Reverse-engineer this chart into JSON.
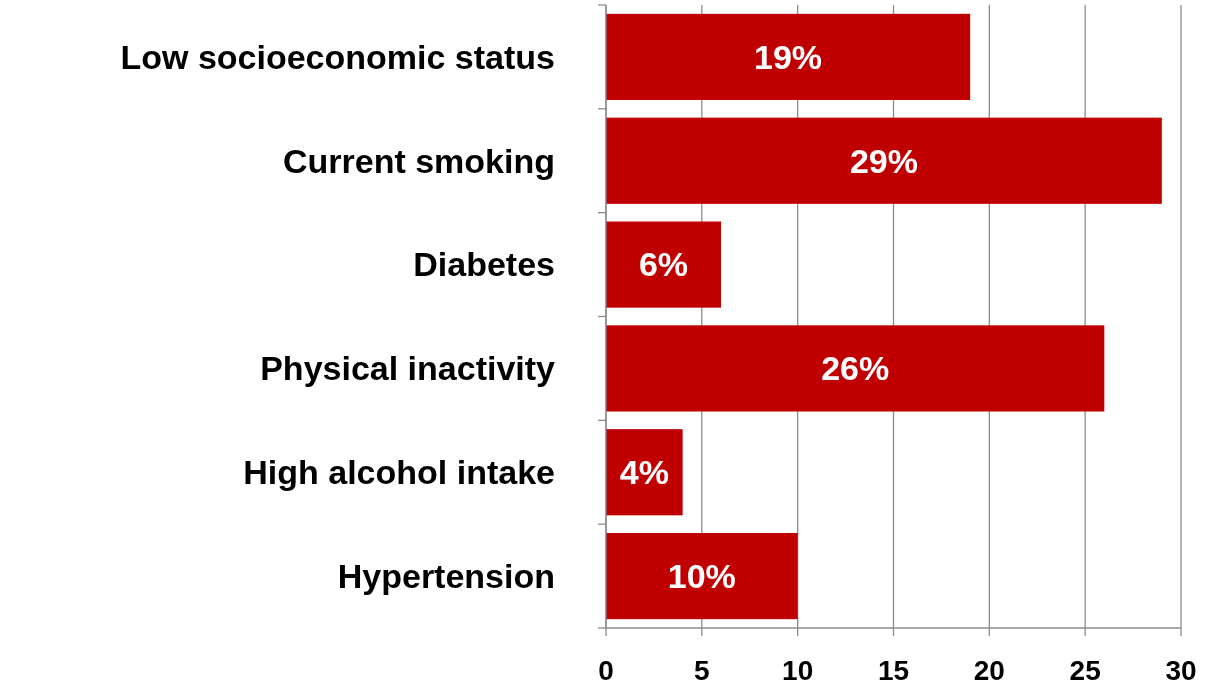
{
  "chart_data": {
    "type": "bar",
    "orientation": "horizontal",
    "categories": [
      "Low socioeconomic status",
      "Current smoking",
      "Diabetes",
      "Physical inactivity",
      "High alcohol intake",
      "Hypertension"
    ],
    "values": [
      19,
      29,
      6,
      26,
      4,
      10
    ],
    "value_labels": [
      "19%",
      "29%",
      "6%",
      "26%",
      "4%",
      "10%"
    ],
    "color": "#c00000",
    "xlim": [
      0,
      30
    ],
    "xticks": [
      0,
      5,
      10,
      15,
      20,
      25,
      30
    ],
    "grid": "x"
  }
}
